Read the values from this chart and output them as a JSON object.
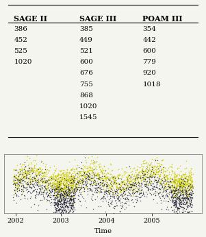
{
  "table_headers": [
    "SAGE II",
    "SAGE III",
    "POAM III"
  ],
  "sage2": [
    "386",
    "452",
    "525",
    "1020",
    "",
    "",
    "",
    "",
    "",
    ""
  ],
  "sage3": [
    "385",
    "449",
    "521",
    "600",
    "676",
    "755",
    "868",
    "1020",
    "1545",
    ""
  ],
  "poam3": [
    "354",
    "442",
    "600",
    "779",
    "920",
    "1018",
    "",
    "",
    "",
    ""
  ],
  "background_color": "#f5f5f0",
  "plot_bg": "#f5f5f0",
  "xlabel": "Time",
  "xlim_start": 2001.75,
  "xlim_end": 2006.1,
  "xticks": [
    2002,
    2003,
    2004,
    2005
  ],
  "xtick_labels": [
    "2002",
    "2003",
    "2004",
    "2005"
  ],
  "yellow_color": "#cccc00",
  "dark_color": "#1a1a2e"
}
